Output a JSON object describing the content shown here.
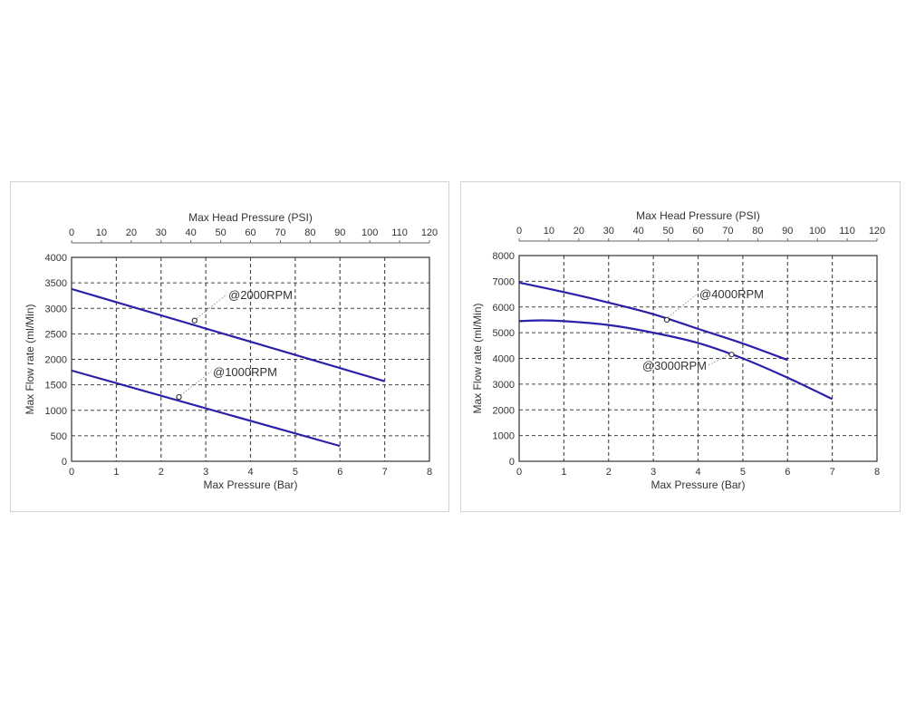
{
  "chart_data": [
    {
      "type": "line",
      "title": "",
      "x_top_label": "Max Head Pressure (PSI)",
      "x_top_ticks": [
        0,
        10,
        20,
        30,
        40,
        50,
        60,
        70,
        80,
        90,
        100,
        110,
        120
      ],
      "x_top_lim": [
        0,
        120
      ],
      "xlabel": "Max Pressure (Bar)",
      "ylabel": "Max Flow rate (ml/Min)",
      "xlim": [
        0,
        8
      ],
      "ylim": [
        0,
        4000
      ],
      "x_ticks": [
        0,
        1,
        2,
        3,
        4,
        5,
        6,
        7,
        8
      ],
      "y_ticks": [
        0,
        500,
        1000,
        1500,
        2000,
        2500,
        3000,
        3500,
        4000
      ],
      "grid": true,
      "series": [
        {
          "name": "@2000RPM",
          "color": "#2b20a8",
          "x": [
            0,
            7
          ],
          "y": [
            3380,
            1570
          ],
          "marker": [
            2.75,
            2760
          ]
        },
        {
          "name": "@1000RPM",
          "color": "#2b20a8",
          "x": [
            0,
            6
          ],
          "y": [
            1780,
            300
          ],
          "marker": [
            2.4,
            1260
          ]
        }
      ]
    },
    {
      "type": "line",
      "title": "",
      "x_top_label": "Max Head Pressure (PSI)",
      "x_top_ticks": [
        0,
        10,
        20,
        30,
        40,
        50,
        60,
        70,
        80,
        90,
        100,
        110,
        120
      ],
      "x_top_lim": [
        0,
        120
      ],
      "xlabel": "Max Pressure (Bar)",
      "ylabel": "Max Flow rate (ml/Min)",
      "xlim": [
        0,
        8
      ],
      "ylim": [
        0,
        8000
      ],
      "x_ticks": [
        0,
        1,
        2,
        3,
        4,
        5,
        6,
        7,
        8
      ],
      "y_ticks": [
        0,
        1000,
        2000,
        3000,
        4000,
        5000,
        6000,
        7000,
        8000
      ],
      "grid": true,
      "series": [
        {
          "name": "@4000RPM",
          "color": "#2b20a8",
          "x": [
            0,
            1,
            2,
            3,
            4,
            5,
            6
          ],
          "y": [
            6950,
            6580,
            6170,
            5720,
            5150,
            4580,
            3940
          ],
          "marker": [
            3.3,
            5500
          ]
        },
        {
          "name": "@3000RPM",
          "color": "#2b20a8",
          "x": [
            0,
            0.5,
            1,
            2,
            3,
            4,
            5,
            6,
            7
          ],
          "y": [
            5450,
            5480,
            5450,
            5300,
            5000,
            4600,
            4000,
            3250,
            2420
          ],
          "marker": [
            4.75,
            4150
          ]
        }
      ]
    }
  ]
}
